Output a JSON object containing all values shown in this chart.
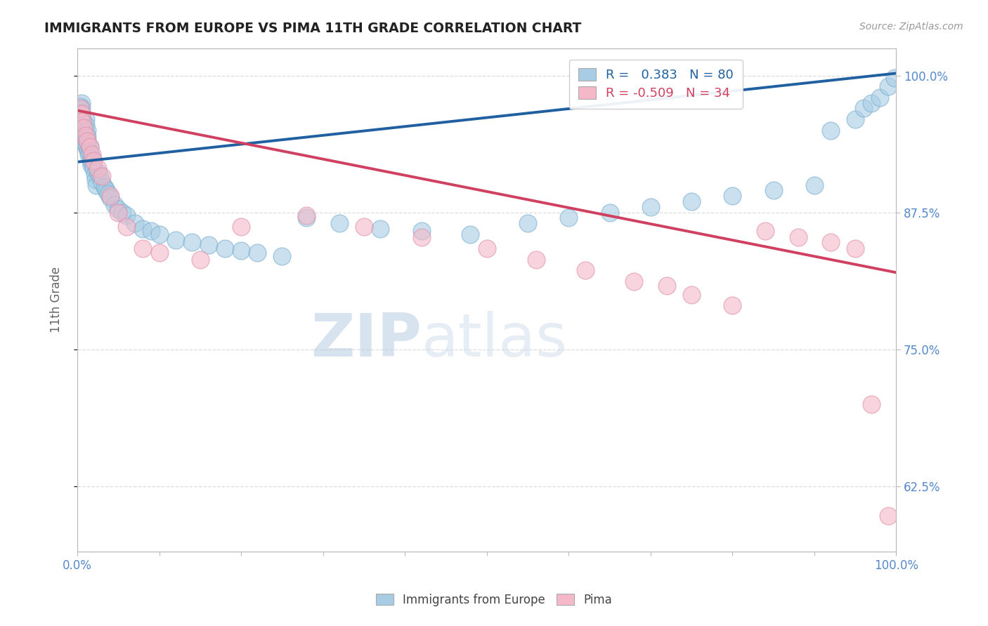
{
  "title": "IMMIGRANTS FROM EUROPE VS PIMA 11TH GRADE CORRELATION CHART",
  "source_text": "Source: ZipAtlas.com",
  "ylabel": "11th Grade",
  "watermark_zip": "ZIP",
  "watermark_atlas": "atlas",
  "xlim": [
    0.0,
    1.0
  ],
  "ylim": [
    0.565,
    1.025
  ],
  "blue_R": 0.383,
  "blue_N": 80,
  "pink_R": -0.509,
  "pink_N": 34,
  "ytick_values": [
    0.625,
    0.75,
    0.875,
    1.0
  ],
  "ytick_labels": [
    "62.5%",
    "75.0%",
    "87.5%",
    "100.0%"
  ],
  "blue_color": "#a8cce4",
  "pink_color": "#f4b8c8",
  "blue_line_color": "#2060a0",
  "pink_line_color": "#d04060",
  "title_color": "#222222",
  "axis_color": "#bbbbbb",
  "label_color": "#5588cc",
  "grid_color": "#dddddd",
  "blue_line_start_y": 0.921,
  "blue_line_end_y": 1.002,
  "pink_line_start_y": 0.968,
  "pink_line_end_y": 0.82,
  "blue_x": [
    0.002,
    0.003,
    0.003,
    0.004,
    0.004,
    0.005,
    0.005,
    0.005,
    0.006,
    0.006,
    0.006,
    0.007,
    0.007,
    0.007,
    0.008,
    0.008,
    0.009,
    0.009,
    0.01,
    0.01,
    0.01,
    0.011,
    0.011,
    0.012,
    0.012,
    0.013,
    0.013,
    0.014,
    0.015,
    0.015,
    0.016,
    0.017,
    0.018,
    0.019,
    0.02,
    0.021,
    0.022,
    0.023,
    0.025,
    0.027,
    0.03,
    0.033,
    0.035,
    0.038,
    0.04,
    0.045,
    0.05,
    0.055,
    0.06,
    0.07,
    0.08,
    0.09,
    0.1,
    0.12,
    0.14,
    0.16,
    0.18,
    0.2,
    0.22,
    0.25,
    0.28,
    0.32,
    0.37,
    0.42,
    0.48,
    0.55,
    0.6,
    0.65,
    0.7,
    0.75,
    0.8,
    0.85,
    0.9,
    0.92,
    0.95,
    0.96,
    0.97,
    0.98,
    0.99,
    0.998
  ],
  "blue_y": [
    0.968,
    0.972,
    0.965,
    0.962,
    0.958,
    0.975,
    0.97,
    0.966,
    0.96,
    0.955,
    0.95,
    0.945,
    0.94,
    0.958,
    0.952,
    0.948,
    0.943,
    0.938,
    0.96,
    0.955,
    0.948,
    0.942,
    0.935,
    0.95,
    0.944,
    0.938,
    0.932,
    0.928,
    0.935,
    0.929,
    0.922,
    0.918,
    0.925,
    0.92,
    0.915,
    0.91,
    0.905,
    0.9,
    0.912,
    0.908,
    0.902,
    0.898,
    0.895,
    0.892,
    0.888,
    0.882,
    0.878,
    0.875,
    0.872,
    0.865,
    0.86,
    0.858,
    0.855,
    0.85,
    0.848,
    0.845,
    0.842,
    0.84,
    0.838,
    0.835,
    0.87,
    0.865,
    0.86,
    0.858,
    0.855,
    0.865,
    0.87,
    0.875,
    0.88,
    0.885,
    0.89,
    0.895,
    0.9,
    0.95,
    0.96,
    0.97,
    0.975,
    0.98,
    0.99,
    0.998
  ],
  "pink_x": [
    0.003,
    0.005,
    0.006,
    0.008,
    0.01,
    0.012,
    0.015,
    0.018,
    0.02,
    0.025,
    0.03,
    0.04,
    0.05,
    0.06,
    0.08,
    0.1,
    0.15,
    0.2,
    0.28,
    0.35,
    0.42,
    0.5,
    0.56,
    0.62,
    0.68,
    0.72,
    0.75,
    0.8,
    0.84,
    0.88,
    0.92,
    0.95,
    0.97,
    0.99
  ],
  "pink_y": [
    0.97,
    0.965,
    0.958,
    0.952,
    0.945,
    0.94,
    0.935,
    0.928,
    0.922,
    0.915,
    0.908,
    0.89,
    0.875,
    0.862,
    0.842,
    0.838,
    0.832,
    0.862,
    0.872,
    0.862,
    0.852,
    0.842,
    0.832,
    0.822,
    0.812,
    0.808,
    0.8,
    0.79,
    0.858,
    0.852,
    0.848,
    0.842,
    0.7,
    0.598
  ]
}
